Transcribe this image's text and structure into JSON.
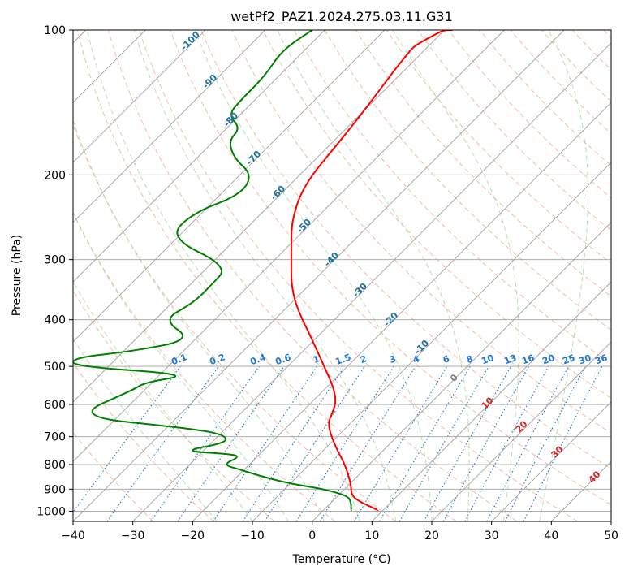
{
  "chart_data": {
    "type": "line",
    "title": "wetPf2_PAZ1.2024.275.03.11.G31",
    "xlabel": "Temperature (°C)",
    "ylabel": "Pressure (hPa)",
    "xlim": [
      -40,
      50
    ],
    "ylim": [
      1050,
      100
    ],
    "y_scale": "log",
    "grid": true,
    "x_ticks": [
      "−40",
      "−30",
      "−20",
      "−10",
      "0",
      "10",
      "20",
      "30",
      "40",
      "50"
    ],
    "x_tick_values": [
      -40,
      -30,
      -20,
      -10,
      0,
      10,
      20,
      30,
      40,
      50
    ],
    "y_ticks": [
      "100",
      "200",
      "300",
      "400",
      "500",
      "600",
      "700",
      "800",
      "900",
      "1000"
    ],
    "y_tick_values": [
      100,
      200,
      300,
      400,
      500,
      600,
      700,
      800,
      900,
      1000
    ],
    "colors": {
      "temperature": "#ff0000",
      "dewpoint": "#008000",
      "isotherm": "#a0a0a0",
      "dry_adiabat": "#f4a582",
      "moist_adiabat": "#a6d8a0",
      "mixing_ratio": "#1f77d4",
      "skewed_label": "#1f6fa0",
      "moist_label": "#d62728",
      "lcl_label": "#808080"
    },
    "series": [
      {
        "role": "temperature",
        "x_display": [
          11,
          7.5,
          6.5,
          6.5,
          5.5,
          4,
          2.5,
          3.5,
          4,
          3.5,
          2,
          0,
          -2.5,
          -3.5,
          -3.5,
          -3.5,
          -3,
          -2,
          0,
          3,
          5.5,
          10,
          14,
          16,
          17,
          20,
          22,
          23.5
        ],
        "p": [
          995,
          950,
          920,
          880,
          800,
          740,
          660,
          620,
          590,
          550,
          500,
          440,
          380,
          340,
          300,
          260,
          240,
          220,
          200,
          180,
          165,
          140,
          120,
          112,
          108,
          103,
          100,
          100
        ]
      },
      {
        "role": "dewpoint",
        "x_display": [
          6.5,
          6.5,
          6,
          2,
          -3,
          -8,
          -12,
          -15,
          -12,
          -14,
          -22,
          -14,
          -15,
          -22,
          -40,
          -30,
          -28,
          -20,
          -40,
          -40,
          -30,
          -20,
          -25,
          -20,
          -17,
          -14,
          -24,
          -20,
          -12,
          -10,
          -13,
          -14,
          -12,
          -14,
          -12,
          -8,
          -5,
          0
        ],
        "p": [
          995,
          960,
          930,
          900,
          880,
          850,
          820,
          800,
          770,
          760,
          750,
          720,
          690,
          670,
          635,
          560,
          540,
          520,
          500,
          480,
          465,
          440,
          400,
          370,
          340,
          310,
          270,
          240,
          220,
          200,
          185,
          170,
          160,
          150,
          140,
          125,
          110,
          100
        ]
      }
    ],
    "annotations": {
      "skewed_isotherm_labels": [
        "-100",
        "-90",
        "-80",
        "-70",
        "-60",
        "-50",
        "-40",
        "-30",
        "-20",
        "-10"
      ],
      "mixing_ratio_labels": [
        "0.1",
        "0.2",
        "0.4",
        "0.6",
        "1",
        "1.5",
        "2",
        "3",
        "4",
        "6",
        "8",
        "10",
        "13",
        "16",
        "20",
        "25",
        "30",
        "36"
      ],
      "moist_adiabat_labels": [
        "10",
        "20",
        "30",
        "40"
      ],
      "lcl_label": "0"
    }
  }
}
